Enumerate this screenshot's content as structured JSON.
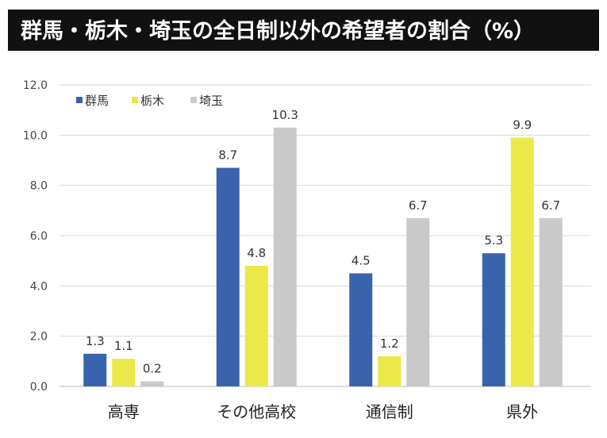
{
  "chart_data": {
    "type": "bar",
    "title": "群馬・栃木・埼玉の全日制以外の希望者の割合（%）",
    "xlabel": "",
    "ylabel": "",
    "ylim": [
      0,
      12
    ],
    "yticks": [
      "0.0",
      "2.0",
      "4.0",
      "6.0",
      "8.0",
      "10.0",
      "12.0"
    ],
    "grid": true,
    "legend_position": "top-left",
    "categories": [
      "高専",
      "その他高校",
      "通信制",
      "県外"
    ],
    "series": [
      {
        "name": "群馬",
        "color": "#3a63ad",
        "values": [
          1.3,
          8.7,
          4.5,
          5.3
        ],
        "labels": [
          "1.3",
          "8.7",
          "4.5",
          "5.3"
        ]
      },
      {
        "name": "栃木",
        "color": "#ece84a",
        "values": [
          1.1,
          4.8,
          1.2,
          9.9
        ],
        "labels": [
          "1.1",
          "4.8",
          "1.2",
          "9.9"
        ]
      },
      {
        "name": "埼玉",
        "color": "#c9c9c9",
        "values": [
          0.2,
          10.3,
          6.7,
          6.7
        ],
        "labels": [
          "0.2",
          "10.3",
          "6.7",
          "6.7"
        ]
      }
    ]
  }
}
